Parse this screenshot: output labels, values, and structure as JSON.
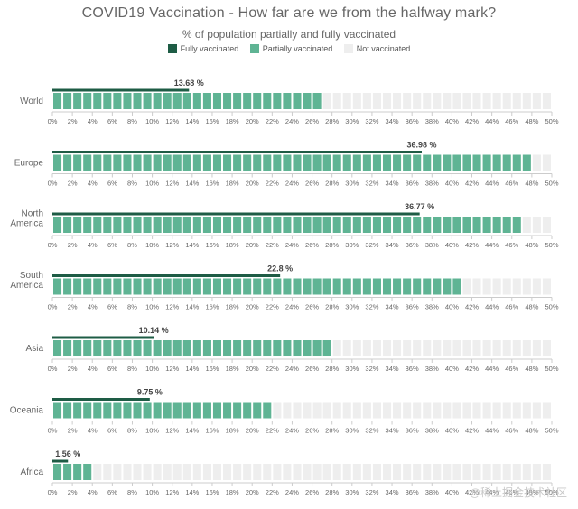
{
  "title": "COVID19 Vaccination - How far are we from the halfway mark?",
  "subtitle": "% of population partially and fully vaccinated",
  "legend": [
    {
      "label": "Fully vaccinated",
      "color": "#1e5c45"
    },
    {
      "label": "Partially vaccinated",
      "color": "#5fb494"
    },
    {
      "label": "Not vaccinated",
      "color": "#eeeeee"
    }
  ],
  "watermark": "@稀土掘金技术社区",
  "colors": {
    "fully": "#1e5c45",
    "partial": "#5fb494",
    "empty": "#eeeeee",
    "axis": "#cccccc",
    "tick_text": "#666666",
    "category_text": "#666666",
    "label_text": "#444444"
  },
  "chart_data": {
    "type": "bar",
    "categories": [
      "World",
      "Europe",
      "North America",
      "South America",
      "Asia",
      "Oceania",
      "Africa"
    ],
    "series": [
      {
        "name": "Fully vaccinated",
        "values": [
          13.68,
          36.98,
          36.77,
          22.8,
          10.14,
          9.75,
          1.56
        ]
      },
      {
        "name": "Partially vaccinated",
        "values": [
          27,
          48,
          47,
          41,
          28,
          22,
          4
        ]
      },
      {
        "name": "Not vaccinated",
        "values": [
          50,
          50,
          50,
          50,
          50,
          50,
          50
        ]
      }
    ],
    "value_labels": [
      "13.68 %",
      "36.98 %",
      "36.77 %",
      "22.8 %",
      "10.14 %",
      "9.75 %",
      "1.56 %"
    ],
    "xlim": [
      0,
      50
    ],
    "x_ticks": [
      "0%",
      "2%",
      "4%",
      "6%",
      "8%",
      "10%",
      "12%",
      "14%",
      "16%",
      "18%",
      "20%",
      "22%",
      "24%",
      "26%",
      "28%",
      "30%",
      "32%",
      "34%",
      "36%",
      "38%",
      "40%",
      "42%",
      "44%",
      "46%",
      "48%",
      "50%"
    ],
    "unit_step": 1,
    "grid": false,
    "legend_position": "top-center"
  }
}
